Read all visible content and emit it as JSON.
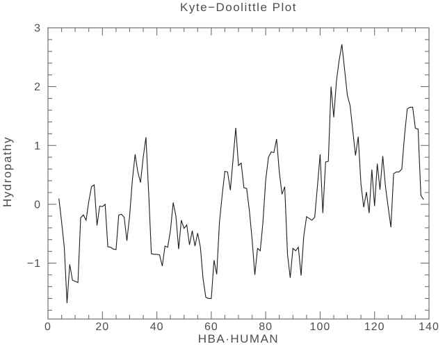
{
  "chart_data": {
    "type": "line",
    "title": "Kyte−Doolittle Plot",
    "xlabel": "HBA·HUMAN",
    "ylabel": "Hydropathy",
    "xlim": [
      0,
      140
    ],
    "ylim": [
      -1.95,
      3.0
    ],
    "x_major_ticks": [
      0,
      20,
      40,
      60,
      80,
      100,
      120,
      140
    ],
    "x_tick_labels": [
      "0",
      "20",
      "40",
      "60",
      "80",
      "100",
      "120",
      "140"
    ],
    "x_minor_step": 5,
    "y_major_ticks": [
      -1,
      0,
      1,
      2,
      3
    ],
    "y_tick_labels": [
      "−1",
      "0",
      "1",
      "2",
      "3"
    ],
    "y_minor_step": 0.2,
    "grid": false,
    "legend_position": "none",
    "line_color": "#1c1c1c",
    "axis_color": "#6e6e6e",
    "text_color": "#4d4d4d",
    "series": [
      {
        "name": "HBA·HUMAN hydropathy",
        "x": [
          4,
          5,
          6,
          7,
          8,
          9,
          10,
          11,
          12,
          13,
          14,
          15,
          16,
          17,
          18,
          19,
          20,
          21,
          22,
          23,
          24,
          25,
          26,
          27,
          28,
          29,
          30,
          31,
          32,
          33,
          34,
          35,
          36,
          37,
          38,
          39,
          40,
          41,
          42,
          43,
          44,
          45,
          46,
          47,
          48,
          49,
          50,
          51,
          52,
          53,
          54,
          55,
          56,
          57,
          58,
          59,
          60,
          61,
          62,
          63,
          64,
          65,
          66,
          67,
          68,
          69,
          70,
          71,
          72,
          73,
          74,
          75,
          76,
          77,
          78,
          79,
          80,
          81,
          82,
          83,
          84,
          85,
          86,
          87,
          88,
          89,
          90,
          91,
          92,
          93,
          94,
          95,
          96,
          97,
          98,
          99,
          100,
          101,
          102,
          103,
          104,
          105,
          106,
          107,
          108,
          109,
          110,
          111,
          112,
          113,
          114,
          115,
          116,
          117,
          118,
          119,
          120,
          121,
          122,
          123,
          124,
          125,
          126,
          127,
          128,
          129,
          130,
          131,
          132,
          133,
          134,
          135,
          136,
          137,
          138
        ],
        "y": [
          0.1,
          -0.3,
          -0.74,
          -1.68,
          -1.02,
          -1.29,
          -1.31,
          -1.33,
          -0.23,
          -0.18,
          -0.27,
          0.05,
          0.3,
          0.33,
          -0.36,
          -0.03,
          -0.04,
          0.0,
          -0.72,
          -0.73,
          -0.76,
          -0.77,
          -0.18,
          -0.17,
          -0.22,
          -0.62,
          -0.2,
          0.4,
          0.85,
          0.55,
          0.37,
          0.8,
          1.14,
          0.2,
          -0.84,
          -0.85,
          -0.85,
          -0.86,
          -1.05,
          -0.71,
          -0.73,
          -0.45,
          0.03,
          -0.2,
          -0.76,
          -0.27,
          -0.41,
          -0.35,
          -0.69,
          -0.45,
          -0.71,
          -0.49,
          -0.73,
          -1.27,
          -1.58,
          -1.6,
          -1.6,
          -0.95,
          -1.19,
          -0.31,
          0.15,
          0.56,
          0.55,
          0.24,
          0.77,
          1.3,
          0.66,
          0.7,
          0.28,
          0.27,
          -0.11,
          -0.6,
          -1.2,
          -0.75,
          -0.79,
          -0.3,
          0.41,
          0.8,
          0.89,
          0.88,
          1.11,
          0.55,
          0.17,
          0.3,
          -0.85,
          -1.25,
          -0.75,
          -0.79,
          -0.73,
          -1.21,
          -0.54,
          -0.21,
          -0.24,
          -0.27,
          -0.22,
          0.3,
          0.85,
          -0.15,
          0.72,
          0.73,
          2.0,
          1.48,
          2.1,
          2.45,
          2.72,
          2.28,
          1.85,
          1.68,
          1.25,
          0.83,
          1.15,
          0.35,
          -0.05,
          0.21,
          -0.15,
          0.59,
          -0.03,
          0.69,
          0.25,
          0.82,
          0.3,
          -0.05,
          -0.39,
          0.52,
          0.55,
          0.55,
          0.6,
          1.17,
          1.62,
          1.65,
          1.65,
          1.29,
          1.28,
          0.15,
          0.08
        ]
      }
    ]
  }
}
